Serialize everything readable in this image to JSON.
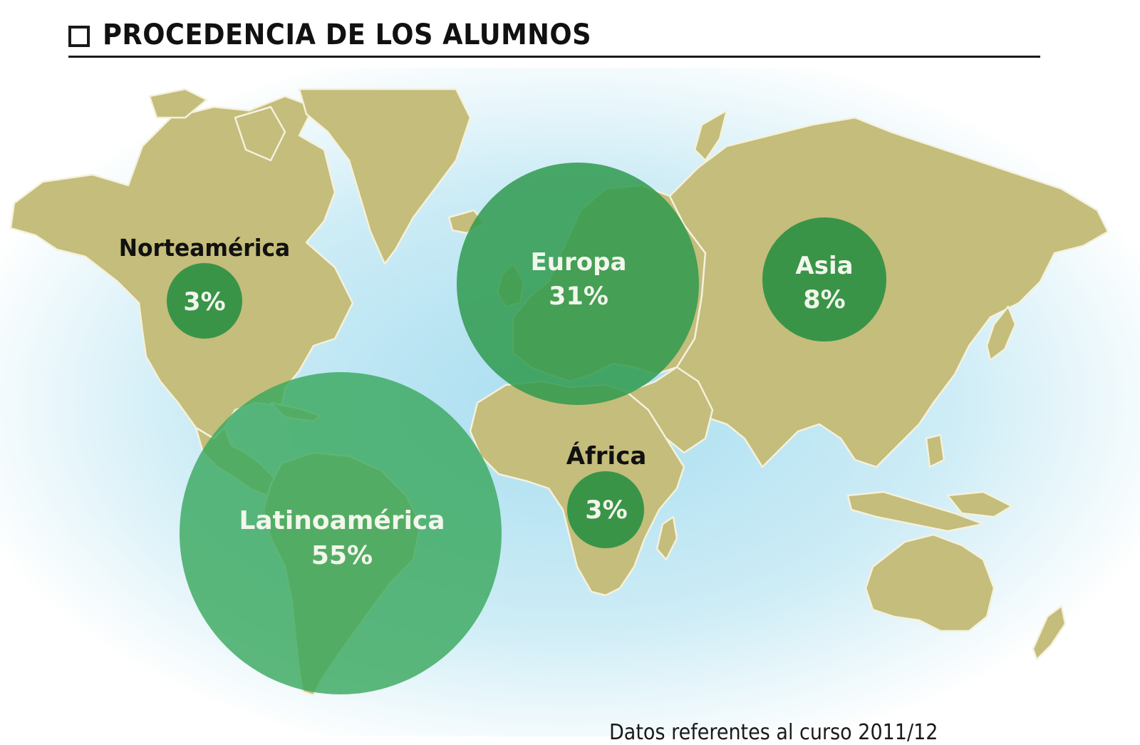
{
  "title": "PROCEDENCIA DE LOS ALUMNOS",
  "credit": "Datos referentes al curso 2011/12",
  "colors": {
    "land": "#c4bd7b",
    "land_border": "#f4f1de",
    "ocean_glow": "#bfe6f3",
    "bubble_large": "#3aa85f",
    "bubble_mid": "#2f9a4e",
    "bubble_small": "#2a8f42",
    "label_light": "#f2f6ec",
    "label_dark": "#111111"
  },
  "regions": [
    {
      "name": "Norteamérica",
      "value": "3%",
      "share": 3
    },
    {
      "name": "Europa",
      "value": "31%",
      "share": 31
    },
    {
      "name": "Asia",
      "value": "8%",
      "share": 8
    },
    {
      "name": "África",
      "value": "3%",
      "share": 3
    },
    {
      "name": "Latinoamérica",
      "value": "55%",
      "share": 55
    }
  ]
}
